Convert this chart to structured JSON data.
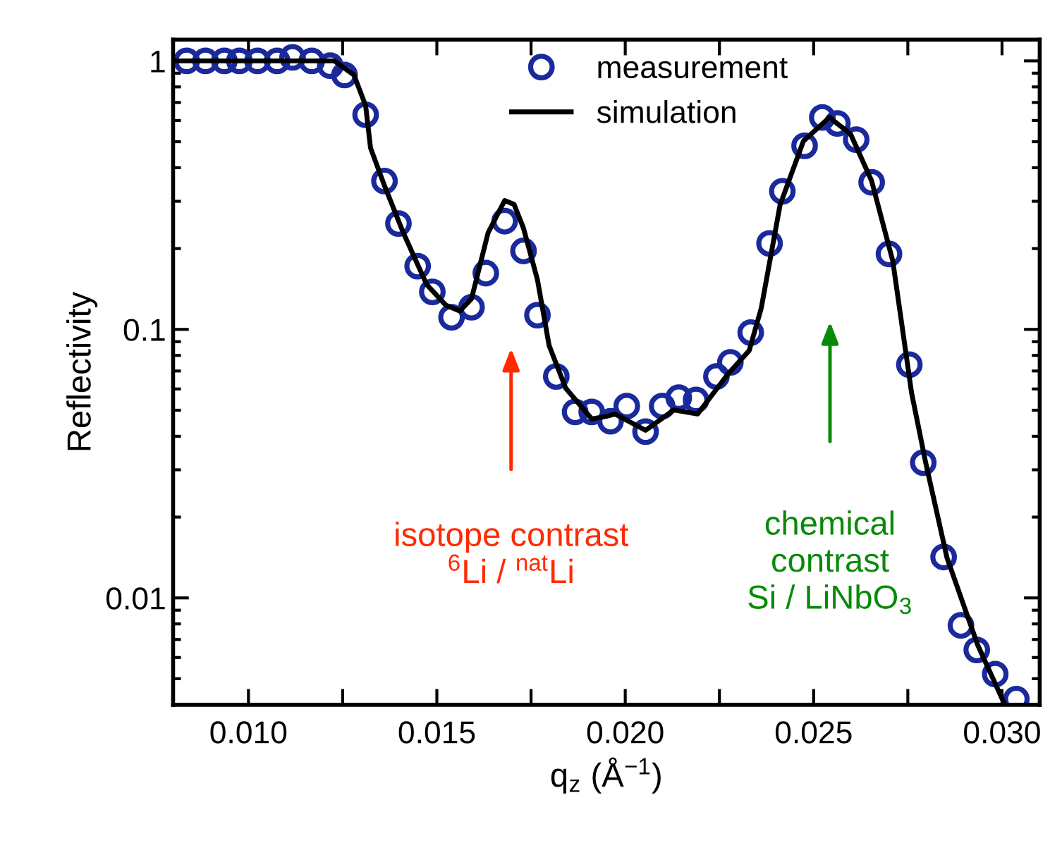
{
  "chart_data": {
    "type": "line",
    "xlabel": "q$_{z}$ (Å$^{−1}$)",
    "ylabel": "Reflectivity",
    "log": "y",
    "xlim": [
      0.008,
      0.031
    ],
    "ylim": [
      0.004,
      1.2
    ],
    "xticks": [
      {
        "value": 0.01,
        "label": "0.010"
      },
      {
        "value": 0.0125,
        "label": null
      },
      {
        "value": 0.015,
        "label": "0.015"
      },
      {
        "value": 0.0175,
        "label": null
      },
      {
        "value": 0.02,
        "label": "0.020"
      },
      {
        "value": 0.0225,
        "label": null
      },
      {
        "value": 0.025,
        "label": "0.025"
      },
      {
        "value": 0.0275,
        "label": null
      },
      {
        "value": 0.03,
        "label": "0.030"
      }
    ],
    "yticks": [
      {
        "value": 0.01,
        "label": "0.01"
      },
      {
        "value": 0.1,
        "label": "0.1"
      },
      1
    ],
    "legend": "top",
    "grid": false,
    "series": [
      {
        "name": "measurement",
        "type": "scatter",
        "marker": "circle",
        "color": "#1a2a9c",
        "x": [
          0.00836,
          0.00886,
          0.00936,
          0.00976,
          0.01024,
          0.01076,
          0.01117,
          0.01168,
          0.01217,
          0.01255,
          0.01311,
          0.01361,
          0.01398,
          0.01449,
          0.01488,
          0.01539,
          0.01592,
          0.0163,
          0.0168,
          0.0173,
          0.01767,
          0.01817,
          0.01867,
          0.01911,
          0.01961,
          0.02004,
          0.02054,
          0.02098,
          0.02142,
          0.02188,
          0.02242,
          0.02279,
          0.02333,
          0.02383,
          0.02417,
          0.02476,
          0.02523,
          0.02563,
          0.02613,
          0.02654,
          0.027,
          0.02754,
          0.02791,
          0.02845,
          0.02891,
          0.02933,
          0.02982,
          0.03038
        ],
        "values": [
          1.0,
          1.0,
          1.0,
          1.0,
          1.0,
          1.0,
          1.03,
          1.0,
          0.96,
          0.886,
          0.63,
          0.357,
          0.248,
          0.172,
          0.138,
          0.111,
          0.121,
          0.162,
          0.253,
          0.196,
          0.113,
          0.0668,
          0.0493,
          0.0493,
          0.0455,
          0.0518,
          0.0416,
          0.0518,
          0.0557,
          0.0546,
          0.0668,
          0.0754,
          0.0973,
          0.209,
          0.327,
          0.483,
          0.616,
          0.585,
          0.509,
          0.353,
          0.191,
          0.0739,
          0.0319,
          0.0142,
          0.0079,
          0.0064,
          0.0052,
          0.0042
        ]
      },
      {
        "name": "simulation",
        "marker": "none",
        "line_style": "solid",
        "color": "#000000",
        "x": [
          0.008,
          0.01217,
          0.01228,
          0.0128,
          0.01311,
          0.01324,
          0.01361,
          0.01411,
          0.01473,
          0.01524,
          0.01561,
          0.01592,
          0.01636,
          0.0168,
          0.01705,
          0.0173,
          0.01767,
          0.01798,
          0.01842,
          0.01911,
          0.01948,
          0.01973,
          0.02054,
          0.02129,
          0.02192,
          0.02273,
          0.02329,
          0.02361,
          0.02411,
          0.02473,
          0.02542,
          0.02598,
          0.02654,
          0.0271,
          0.0276,
          0.02798,
          0.02854,
          0.02935,
          0.03004
        ],
        "values": [
          1.0,
          1.0,
          1.0,
          0.886,
          0.681,
          0.474,
          0.343,
          0.229,
          0.147,
          0.123,
          0.117,
          0.13,
          0.229,
          0.302,
          0.292,
          0.238,
          0.153,
          0.087,
          0.0604,
          0.0464,
          0.0474,
          0.0484,
          0.0421,
          0.0501,
          0.0484,
          0.0683,
          0.0834,
          0.12,
          0.291,
          0.503,
          0.616,
          0.534,
          0.357,
          0.18,
          0.058,
          0.0316,
          0.0141,
          0.0067,
          0.0041
        ]
      }
    ],
    "annotations": [
      "isotope contrast\n$^{6}$Li / $^{nat}$Li",
      "chemical\ncontrast\nSi / LiNbO$_{3}$"
    ]
  }
}
